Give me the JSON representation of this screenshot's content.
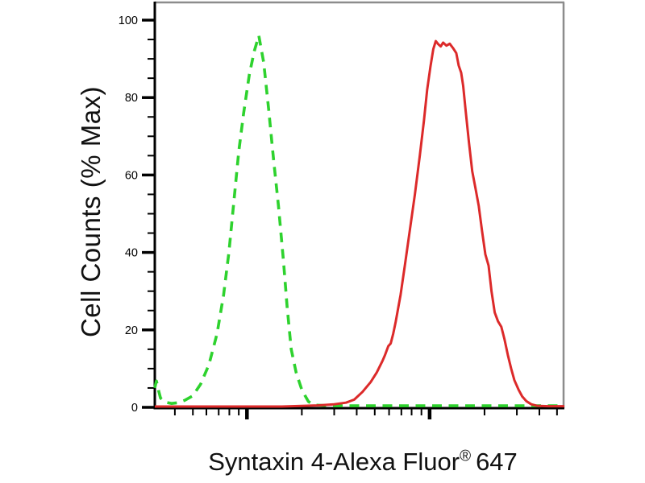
{
  "labels": {
    "ylabel": "Cell Counts (% Max)",
    "xlabel_main": "Syntaxin 4-Alexa Fluor",
    "xlabel_registered": "®",
    "xlabel_suffix": "647"
  },
  "chart_data": {
    "type": "line",
    "subtype": "flow-cytometry-histogram-overlay",
    "title": "Syntaxin 4-Alexa Fluor® 647",
    "xlabel": "Syntaxin 4-Alexa Fluor® 647",
    "ylabel": "Cell Counts (% Max)",
    "grid": false,
    "legend": "none",
    "colors": {
      "control_green": "#2ed22e",
      "sample_red": "#dc2a2a",
      "axis_black": "#000000",
      "frame_gray": "#8c8c8c"
    },
    "y_axis": {
      "min": 0,
      "max": 100,
      "major_tick_step": 20,
      "minor_tick_step": 5,
      "tick_labels": [
        "0",
        "20",
        "40",
        "60",
        "80",
        "100"
      ]
    },
    "x_axis": {
      "scale": "log",
      "numeric_labels_shown": false,
      "major_ticks_fx": [
        0.225,
        0.671
      ],
      "minor_ticks_fx": [
        0.049,
        0.093,
        0.126,
        0.156,
        0.182,
        0.205,
        0.359,
        0.438,
        0.493,
        0.537,
        0.572,
        0.602,
        0.627,
        0.651,
        0.805,
        0.884,
        0.939,
        0.982
      ]
    },
    "series": [
      {
        "name": "negative-control",
        "style": "dashed",
        "color": "#2ed22e",
        "peak_pct": 96,
        "points": [
          [
            0.0,
            5.0
          ],
          [
            0.004,
            6.8
          ],
          [
            0.01,
            4.0
          ],
          [
            0.014,
            2.4
          ],
          [
            0.026,
            1.3
          ],
          [
            0.041,
            1.0
          ],
          [
            0.057,
            1.2
          ],
          [
            0.073,
            1.8
          ],
          [
            0.093,
            3.0
          ],
          [
            0.112,
            6.0
          ],
          [
            0.132,
            11.0
          ],
          [
            0.152,
            19.0
          ],
          [
            0.168,
            29.0
          ],
          [
            0.181,
            40.0
          ],
          [
            0.193,
            53.0
          ],
          [
            0.205,
            66.0
          ],
          [
            0.217,
            76.0
          ],
          [
            0.231,
            86.0
          ],
          [
            0.243,
            92.0
          ],
          [
            0.254,
            96.0
          ],
          [
            0.266,
            89.0
          ],
          [
            0.278,
            77.0
          ],
          [
            0.29,
            64.0
          ],
          [
            0.302,
            52.0
          ],
          [
            0.314,
            38.0
          ],
          [
            0.323,
            26.0
          ],
          [
            0.333,
            15.0
          ],
          [
            0.345,
            9.0
          ],
          [
            0.359,
            4.5
          ],
          [
            0.375,
            1.5
          ],
          [
            0.389,
            0.6
          ],
          [
            0.43,
            0.4
          ],
          [
            0.55,
            0.4
          ],
          [
            0.7,
            0.4
          ],
          [
            0.85,
            0.4
          ],
          [
            1.0,
            0.4
          ]
        ]
      },
      {
        "name": "syntaxin4-alexa-fluor-647",
        "style": "solid",
        "color": "#dc2a2a",
        "peak_pct": 94.6,
        "points": [
          [
            0.0,
            0.2
          ],
          [
            0.31,
            0.2
          ],
          [
            0.398,
            0.5
          ],
          [
            0.438,
            0.8
          ],
          [
            0.467,
            1.2
          ],
          [
            0.487,
            2.0
          ],
          [
            0.507,
            4.0
          ],
          [
            0.527,
            6.5
          ],
          [
            0.542,
            9.0
          ],
          [
            0.556,
            12.0
          ],
          [
            0.562,
            13.5
          ],
          [
            0.57,
            15.8
          ],
          [
            0.576,
            16.5
          ],
          [
            0.582,
            19.0
          ],
          [
            0.588,
            22.0
          ],
          [
            0.6,
            29.0
          ],
          [
            0.611,
            37.0
          ],
          [
            0.623,
            46.0
          ],
          [
            0.635,
            55.0
          ],
          [
            0.647,
            65.0
          ],
          [
            0.657,
            74.0
          ],
          [
            0.665,
            82.0
          ],
          [
            0.673,
            88.0
          ],
          [
            0.68,
            92.5
          ],
          [
            0.686,
            94.6
          ],
          [
            0.692,
            93.8
          ],
          [
            0.698,
            93.2
          ],
          [
            0.704,
            94.2
          ],
          [
            0.712,
            93.4
          ],
          [
            0.72,
            93.9
          ],
          [
            0.728,
            92.8
          ],
          [
            0.736,
            91.5
          ],
          [
            0.742,
            88.3
          ],
          [
            0.748,
            86.4
          ],
          [
            0.753,
            83.0
          ],
          [
            0.759,
            76.5
          ],
          [
            0.767,
            68.5
          ],
          [
            0.775,
            61.0
          ],
          [
            0.783,
            56.5
          ],
          [
            0.791,
            52.0
          ],
          [
            0.799,
            45.5
          ],
          [
            0.807,
            39.5
          ],
          [
            0.815,
            36.6
          ],
          [
            0.822,
            30.0
          ],
          [
            0.83,
            24.5
          ],
          [
            0.838,
            22.2
          ],
          [
            0.846,
            20.8
          ],
          [
            0.854,
            17.5
          ],
          [
            0.862,
            13.5
          ],
          [
            0.87,
            10.0
          ],
          [
            0.878,
            7.0
          ],
          [
            0.888,
            4.6
          ],
          [
            0.897,
            2.8
          ],
          [
            0.907,
            1.6
          ],
          [
            0.919,
            0.8
          ],
          [
            0.933,
            0.4
          ],
          [
            0.961,
            0.3
          ],
          [
            1.0,
            0.3
          ]
        ]
      }
    ]
  }
}
